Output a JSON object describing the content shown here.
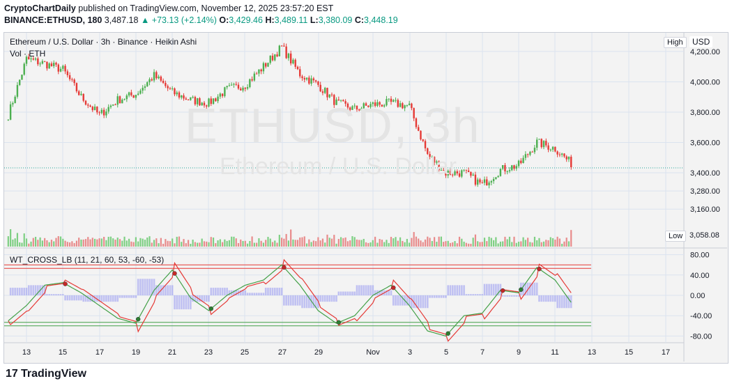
{
  "header": {
    "publisher": "CryptoChartDaily",
    "published_text": "published on TradingView.com, November 12, 2025 23:57:20 EST",
    "symbol": "BINANCE:ETHUSD, 180",
    "price": "3,487.18",
    "change": "▲ +73.13 (+2.14%)",
    "o_label": "O:",
    "o_value": "3,429.46",
    "h_label": "H:",
    "h_value": "3,489.11",
    "l_label": "L:",
    "l_value": "3,380.09",
    "c_label": "C:",
    "c_value": "3,448.19"
  },
  "legend": {
    "series_title": "Ethereum / U.S. Dollar · 3h · Binance · Heikin Ashi",
    "volume_label": "Vol · ETH",
    "indicator_label": "WT_CROSS_LB (11, 21, 60, 53, -60, -53)"
  },
  "watermark": {
    "line1": "ETHUSD, 3h",
    "line2": "Ethereum / U.S. Dollar"
  },
  "price_axis": {
    "currency": "USD",
    "high_label": "High",
    "low_label": "Low",
    "low_value": "3,058.08",
    "ticks": [
      "4,200.00",
      "4,000.00",
      "3,800.00",
      "3,600.00",
      "3,400.00",
      "3,280.00",
      "3,160.00"
    ]
  },
  "osc_axis": {
    "ticks": [
      "80.00",
      "40.00",
      "0.00",
      "-40.00",
      "-80.00"
    ]
  },
  "time_axis": {
    "labels": [
      "13",
      "15",
      "17",
      "19",
      "21",
      "23",
      "25",
      "27",
      "29",
      "Nov",
      "3",
      "5",
      "7",
      "9",
      "11",
      "13",
      "15",
      "17"
    ]
  },
  "footer": {
    "brand": "TradingView"
  },
  "colors": {
    "up": "#4caf50",
    "down": "#e53935",
    "wt1": "#43a047",
    "wt2": "#e53935",
    "hist": "#9598f0",
    "band_red": "#e53935",
    "band_green": "#43a047"
  },
  "chart_data": {
    "type": "candlestick",
    "price_series": {
      "name": "Ethereum / U.S. Dollar · 3h · Binance · Heikin Ashi",
      "x_dates": [
        "Oct 12",
        "Oct 13",
        "Oct 14",
        "Oct 15",
        "Oct 16",
        "Oct 17",
        "Oct 18",
        "Oct 19",
        "Oct 20",
        "Oct 21",
        "Oct 22",
        "Oct 23",
        "Oct 24",
        "Oct 25",
        "Oct 26",
        "Oct 27",
        "Oct 28",
        "Oct 29",
        "Oct 30",
        "Oct 31",
        "Nov 1",
        "Nov 2",
        "Nov 3",
        "Nov 4",
        "Nov 5",
        "Nov 6",
        "Nov 7",
        "Nov 8",
        "Nov 9",
        "Nov 10",
        "Nov 11",
        "Nov 12"
      ],
      "close_approx": [
        3780,
        4150,
        4120,
        4080,
        3900,
        3780,
        3880,
        3920,
        4040,
        3930,
        3880,
        3860,
        3950,
        3980,
        4100,
        4230,
        4050,
        3980,
        3860,
        3820,
        3850,
        3860,
        3840,
        3520,
        3400,
        3400,
        3320,
        3420,
        3450,
        3600,
        3560,
        3448
      ]
    },
    "volume": {
      "name": "Vol · ETH"
    },
    "oscillator": {
      "name": "WT_CROSS_LB",
      "params": [
        11,
        21,
        60,
        53,
        -60,
        -53
      ],
      "ylim": [
        -90,
        90
      ],
      "overbought": [
        60,
        53
      ],
      "oversold": [
        -60,
        -53
      ],
      "wt1_approx": [
        -50,
        -20,
        20,
        25,
        5,
        -20,
        -45,
        -55,
        10,
        50,
        -5,
        -30,
        0,
        20,
        30,
        60,
        20,
        -30,
        -55,
        -40,
        0,
        20,
        -20,
        -70,
        -80,
        -40,
        -35,
        10,
        5,
        55,
        30,
        -20
      ]
    },
    "ylim": [
      3058.08,
      4280
    ]
  }
}
